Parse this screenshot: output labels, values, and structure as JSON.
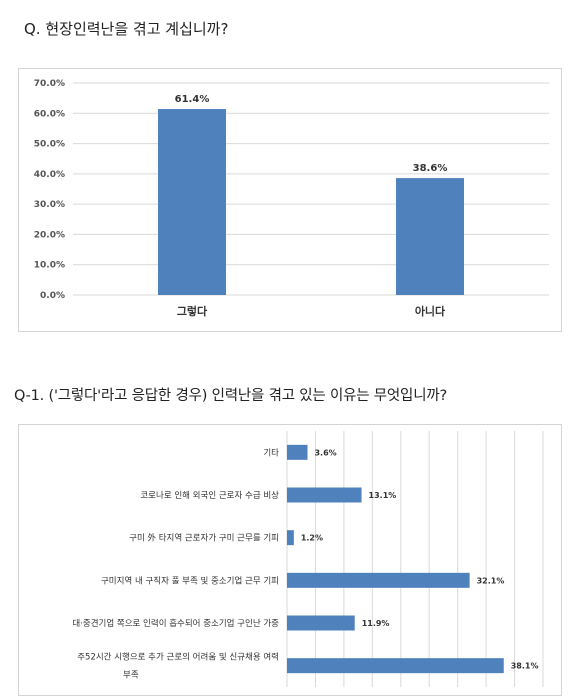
{
  "questions": {
    "q1": "Q. 현장인력난을 겪고 계십니까?",
    "q2": "Q-1. ('그렇다'라고 응답한 경우) 인력난을 겪고 있는 이유는 무엇입니까?"
  },
  "chart_data": [
    {
      "type": "bar",
      "orientation": "vertical",
      "categories": [
        "그렇다",
        "아니다"
      ],
      "values": [
        61.4,
        38.6
      ],
      "value_labels": [
        "61.4%",
        "38.6%"
      ],
      "ylim": [
        0,
        70
      ],
      "y_ticks": [
        0,
        10,
        20,
        30,
        40,
        50,
        60,
        70
      ],
      "y_tick_labels": [
        "0.0%",
        "10.0%",
        "20.0%",
        "30.0%",
        "40.0%",
        "50.0%",
        "60.0%",
        "70.0%"
      ],
      "grid": true,
      "bar_color": "#4f81bd"
    },
    {
      "type": "bar",
      "orientation": "horizontal",
      "categories": [
        [
          "기타"
        ],
        [
          "코로나로 인해 외국인 근로자 수급 비상"
        ],
        [
          "구미 外 타지역 근로자가 구미 근무를 기피"
        ],
        [
          "구미지역 내 구직자 풀 부족 및 중소기업 근무 기피"
        ],
        [
          "대·중견기업 쪽으로 인력이 흡수되어 중소기업 구인난 가중"
        ],
        [
          "주52시간 시행으로 추가 근로의 어려움 및 신규채용 여력",
          "부족"
        ]
      ],
      "values": [
        3.6,
        13.1,
        1.2,
        32.1,
        11.9,
        38.1
      ],
      "value_labels": [
        "3.6%",
        "13.1%",
        "1.2%",
        "32.1%",
        "11.9%",
        "38.1%"
      ],
      "xlim": [
        0,
        45
      ],
      "grid": true,
      "bar_color": "#4f81bd"
    }
  ]
}
